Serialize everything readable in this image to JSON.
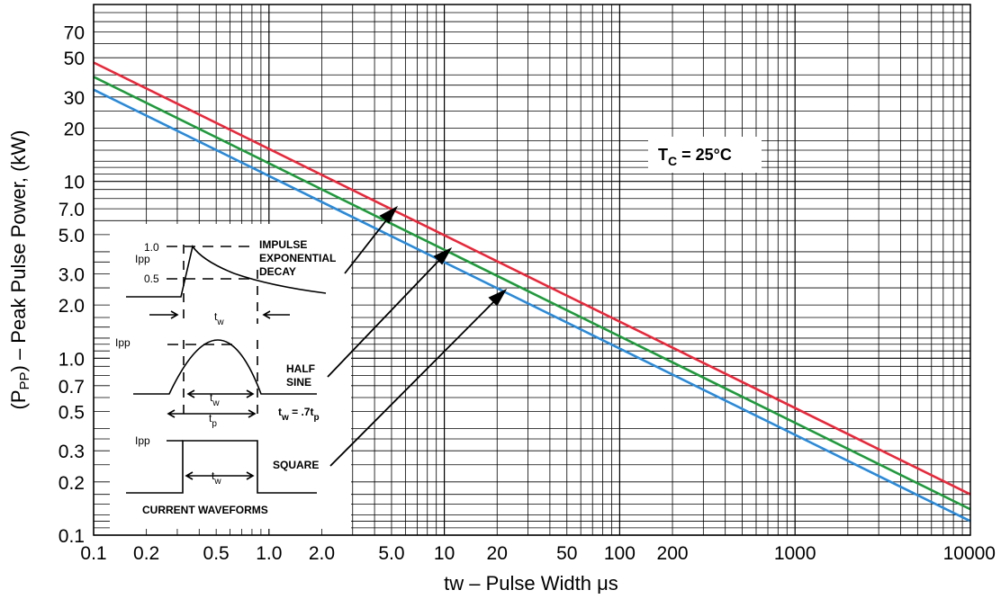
{
  "chart_data": {
    "type": "line",
    "xscale": "log",
    "yscale": "log",
    "xlim": [
      0.1,
      10000
    ],
    "ylim": [
      0.1,
      100
    ],
    "grid": true,
    "xlabel": "tw  – Pulse Width μs",
    "ylabel_main": "(P",
    "ylabel_sub": "PP",
    "ylabel_rest": ") – Peak Pulse Power, (kW)",
    "x_tick_labels": [
      {
        "v": 0.1,
        "t": "0.1"
      },
      {
        "v": 0.2,
        "t": "0.2"
      },
      {
        "v": 0.5,
        "t": "0.5"
      },
      {
        "v": 1,
        "t": "1.0"
      },
      {
        "v": 2,
        "t": "2.0"
      },
      {
        "v": 5,
        "t": "5.0"
      },
      {
        "v": 10,
        "t": "10"
      },
      {
        "v": 20,
        "t": "20"
      },
      {
        "v": 50,
        "t": "50"
      },
      {
        "v": 100,
        "t": "100"
      },
      {
        "v": 200,
        "t": "200"
      },
      {
        "v": 1000,
        "t": "1000"
      },
      {
        "v": 10000,
        "t": "10000"
      }
    ],
    "y_tick_labels": [
      {
        "v": 0.1,
        "t": "0.1"
      },
      {
        "v": 0.2,
        "t": "0.2"
      },
      {
        "v": 0.3,
        "t": "0.3"
      },
      {
        "v": 0.5,
        "t": "0.5"
      },
      {
        "v": 0.7,
        "t": "0.7"
      },
      {
        "v": 1,
        "t": "1.0"
      },
      {
        "v": 2,
        "t": "2.0"
      },
      {
        "v": 3,
        "t": "3.0"
      },
      {
        "v": 5,
        "t": "5.0"
      },
      {
        "v": 7,
        "t": "7.0"
      },
      {
        "v": 10,
        "t": "10"
      },
      {
        "v": 20,
        "t": "20"
      },
      {
        "v": 30,
        "t": "30"
      },
      {
        "v": 50,
        "t": "50"
      },
      {
        "v": 70,
        "t": "70"
      }
    ],
    "series": [
      {
        "color": "#e8283a",
        "x": [
          0.1,
          10000
        ],
        "y": [
          47,
          0.17
        ]
      },
      {
        "color": "#1f9a3c",
        "x": [
          0.1,
          10000
        ],
        "y": [
          39,
          0.14
        ]
      },
      {
        "color": "#2a8ad8",
        "x": [
          0.1,
          10000
        ],
        "y": [
          33,
          0.12
        ]
      }
    ],
    "annotation": {
      "main": "T",
      "sub": "C",
      "rest": " = 25°C"
    },
    "inset": {
      "ipp": "Ipp",
      "level_1": "1.0",
      "level_05": "0.5",
      "tw_main": "t",
      "tw_sub": "w",
      "tp_main": "t",
      "tp_sub": "p",
      "impulse_lines": [
        "IMPULSE",
        "EXPONENTIAL",
        "DECAY"
      ],
      "half_sine_lines": [
        "HALF",
        "SINE"
      ],
      "relation": {
        "a": "t",
        "a_sub": "w",
        "mid": " = .7t",
        "b_sub": "p"
      },
      "square": "SQUARE",
      "footer": "CURRENT WAVEFORMS"
    }
  }
}
